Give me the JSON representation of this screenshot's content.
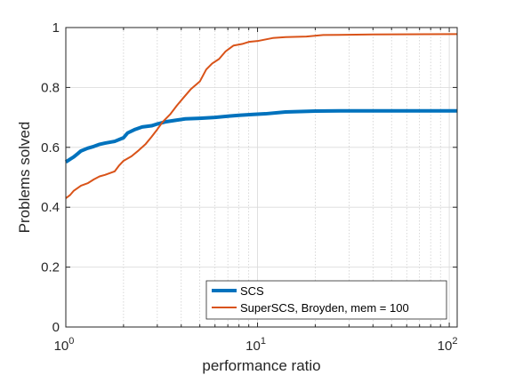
{
  "chart_data": {
    "type": "line",
    "title": "",
    "xlabel": "performance ratio",
    "ylabel": "Problems solved",
    "xscale": "log",
    "xlim": [
      1,
      110
    ],
    "ylim": [
      0,
      1
    ],
    "grid": true,
    "legend_position": "bottom-right",
    "x_ticks": [
      {
        "value": 1,
        "base": "10",
        "exp": "0"
      },
      {
        "value": 10,
        "base": "10",
        "exp": "1"
      },
      {
        "value": 100,
        "base": "10",
        "exp": "2"
      }
    ],
    "y_ticks": [
      {
        "value": 0,
        "label": "0"
      },
      {
        "value": 0.2,
        "label": "0.2"
      },
      {
        "value": 0.4,
        "label": "0.4"
      },
      {
        "value": 0.6,
        "label": "0.6"
      },
      {
        "value": 0.8,
        "label": "0.8"
      },
      {
        "value": 1,
        "label": "1"
      }
    ],
    "series": [
      {
        "name": "SCS",
        "color": "#0072BD",
        "points": [
          [
            1.0,
            0.551
          ],
          [
            1.05,
            0.56
          ],
          [
            1.1,
            0.568
          ],
          [
            1.15,
            0.578
          ],
          [
            1.2,
            0.588
          ],
          [
            1.3,
            0.597
          ],
          [
            1.4,
            0.603
          ],
          [
            1.5,
            0.61
          ],
          [
            1.6,
            0.614
          ],
          [
            1.8,
            0.62
          ],
          [
            2.0,
            0.632
          ],
          [
            2.1,
            0.648
          ],
          [
            2.3,
            0.66
          ],
          [
            2.5,
            0.668
          ],
          [
            2.8,
            0.672
          ],
          [
            3.0,
            0.678
          ],
          [
            3.3,
            0.685
          ],
          [
            3.7,
            0.69
          ],
          [
            4.2,
            0.695
          ],
          [
            5.0,
            0.697
          ],
          [
            6.0,
            0.7
          ],
          [
            7.0,
            0.704
          ],
          [
            8.0,
            0.707
          ],
          [
            9.5,
            0.71
          ],
          [
            11.0,
            0.712
          ],
          [
            14.0,
            0.718
          ],
          [
            20.0,
            0.721
          ],
          [
            30.0,
            0.722
          ],
          [
            50.0,
            0.722
          ],
          [
            110.0,
            0.722
          ]
        ]
      },
      {
        "name": "SuperSCS, Broyden, mem = 100",
        "color": "#D95319",
        "points": [
          [
            1.0,
            0.43
          ],
          [
            1.05,
            0.44
          ],
          [
            1.1,
            0.455
          ],
          [
            1.2,
            0.472
          ],
          [
            1.3,
            0.48
          ],
          [
            1.4,
            0.493
          ],
          [
            1.5,
            0.503
          ],
          [
            1.6,
            0.508
          ],
          [
            1.8,
            0.52
          ],
          [
            1.9,
            0.54
          ],
          [
            2.0,
            0.555
          ],
          [
            2.2,
            0.57
          ],
          [
            2.4,
            0.59
          ],
          [
            2.6,
            0.61
          ],
          [
            2.8,
            0.635
          ],
          [
            3.0,
            0.66
          ],
          [
            3.2,
            0.685
          ],
          [
            3.5,
            0.71
          ],
          [
            3.8,
            0.74
          ],
          [
            4.1,
            0.765
          ],
          [
            4.5,
            0.795
          ],
          [
            5.0,
            0.82
          ],
          [
            5.4,
            0.86
          ],
          [
            5.8,
            0.88
          ],
          [
            6.3,
            0.895
          ],
          [
            6.8,
            0.92
          ],
          [
            7.5,
            0.94
          ],
          [
            8.3,
            0.945
          ],
          [
            9.0,
            0.952
          ],
          [
            10.0,
            0.955
          ],
          [
            12.0,
            0.965
          ],
          [
            14.0,
            0.968
          ],
          [
            18.0,
            0.97
          ],
          [
            22.0,
            0.975
          ],
          [
            40.0,
            0.977
          ],
          [
            110.0,
            0.978
          ]
        ]
      }
    ]
  }
}
